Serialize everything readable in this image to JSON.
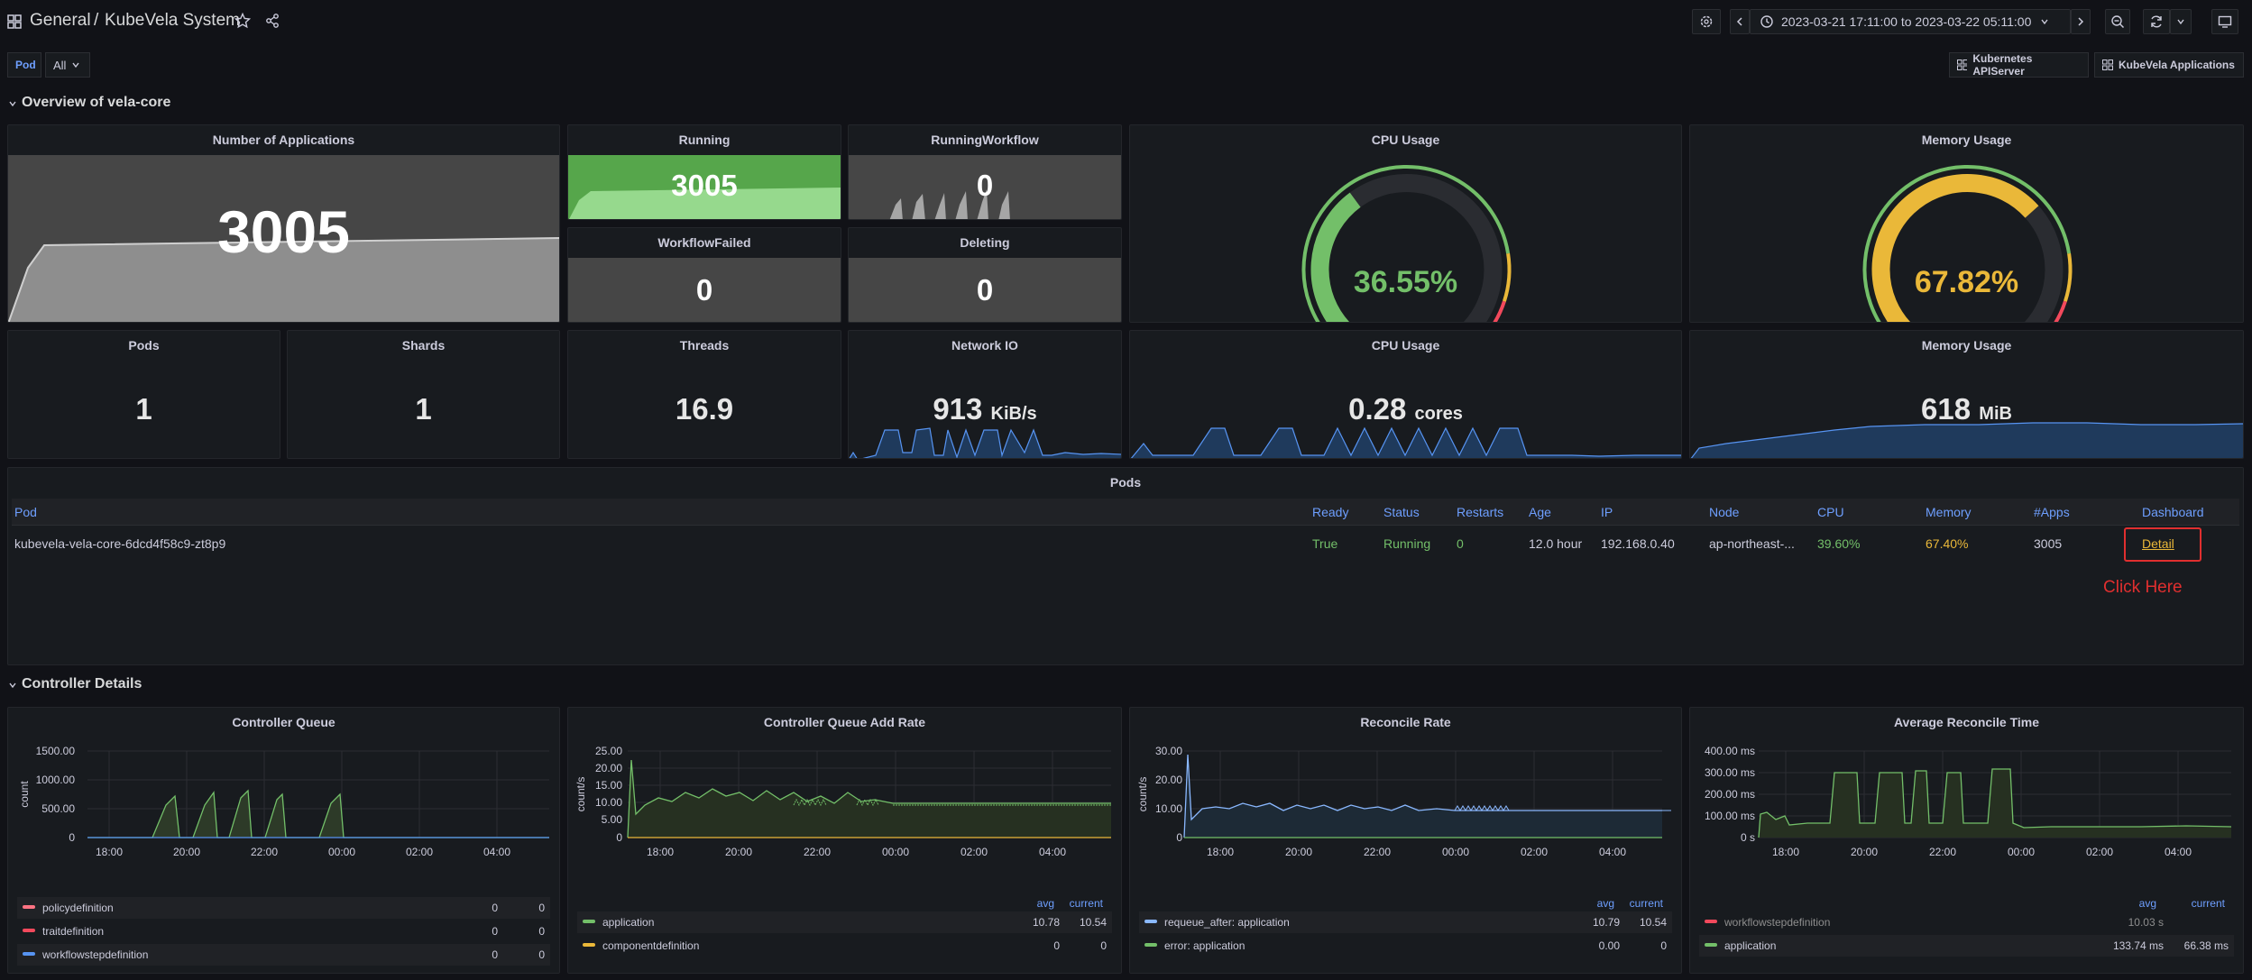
{
  "header": {
    "breadcrumb_root": "General",
    "breadcrumb_sep": "/",
    "dashboard_title": "KubeVela System",
    "time_range": "2023-03-21 17:11:00 to 2023-03-22 05:11:00",
    "icons": [
      "apps-icon",
      "star-icon",
      "share-icon",
      "gear-icon",
      "chevron-left-icon",
      "clock-icon",
      "chevron-down-icon",
      "chevron-right-icon",
      "zoom-out-icon",
      "refresh-icon",
      "chevron-down-icon",
      "tv-icon"
    ]
  },
  "variables": {
    "pod_label": "Pod",
    "pod_value": "All"
  },
  "links": {
    "k8s_api": "Kubernetes APIServer",
    "kubevela_apps": "KubeVela Applications"
  },
  "rows": {
    "overview": "Overview of vela-core",
    "controller": "Controller Details"
  },
  "stats": {
    "num_apps": {
      "title": "Number of Applications",
      "value": "3005"
    },
    "running": {
      "title": "Running",
      "value": "3005"
    },
    "running_workflow": {
      "title": "RunningWorkflow",
      "value": "0"
    },
    "workflow_failed": {
      "title": "WorkflowFailed",
      "value": "0"
    },
    "deleting": {
      "title": "Deleting",
      "value": "0"
    },
    "cpu_gauge": {
      "title": "CPU Usage",
      "value": "36.55%",
      "fraction": 0.3655,
      "color": "#73bf69"
    },
    "mem_gauge": {
      "title": "Memory Usage",
      "value": "67.82%",
      "fraction": 0.6782,
      "color": "#eab839"
    },
    "pods": {
      "title": "Pods",
      "value": "1"
    },
    "shards": {
      "title": "Shards",
      "value": "1"
    },
    "threads": {
      "title": "Threads",
      "value": "16.9"
    },
    "network_io": {
      "title": "Network IO",
      "value": "913",
      "unit": "KiB/s"
    },
    "cpu_cores": {
      "title": "CPU Usage",
      "value": "0.28",
      "unit": "cores"
    },
    "mem_mib": {
      "title": "Memory Usage",
      "value": "618",
      "unit": "MiB"
    }
  },
  "pods_table": {
    "title": "Pods",
    "columns": [
      "Pod",
      "Ready",
      "Status",
      "Restarts",
      "Age",
      "IP",
      "Node",
      "CPU",
      "Memory",
      "#Apps",
      "Dashboard"
    ],
    "row": {
      "pod": "kubevela-vela-core-6dcd4f58c9-zt8p9",
      "ready": "True",
      "status": "Running",
      "restarts": "0",
      "age": "12.0 hour",
      "ip": "192.168.0.40",
      "node": "ap-northeast-...",
      "cpu": "39.60%",
      "memory": "67.40%",
      "apps": "3005",
      "dashboard": "Detail"
    },
    "annotation": "Click Here"
  },
  "colors": {
    "green": "#73bf69",
    "yellow": "#eab839",
    "red": "#f2495c",
    "blue": "#6e9fff",
    "cyan": "#8ab8ff"
  },
  "charts": {
    "queue": {
      "title": "Controller Queue",
      "ylabel": "count",
      "yticks": [
        "1500.00",
        "1000.00",
        "500.00",
        "0"
      ],
      "xticks": [
        "18:00",
        "20:00",
        "22:00",
        "00:00",
        "02:00",
        "04:00"
      ],
      "legend": [
        {
          "name": "policydefinition",
          "v1": "0",
          "v2": "0",
          "color": "#ff7383"
        },
        {
          "name": "traitdefinition",
          "v1": "0",
          "v2": "0",
          "color": "#f2495c"
        },
        {
          "name": "workflowstepdefinition",
          "v1": "0",
          "v2": "0",
          "color": "#5794f2"
        }
      ]
    },
    "add_rate": {
      "title": "Controller Queue Add Rate",
      "ylabel": "count/s",
      "yticks": [
        "25.00",
        "20.00",
        "15.00",
        "10.00",
        "5.00",
        "0"
      ],
      "xticks": [
        "18:00",
        "20:00",
        "22:00",
        "00:00",
        "02:00",
        "04:00"
      ],
      "legend_headers": [
        "avg",
        "current"
      ],
      "legend": [
        {
          "name": "application",
          "v1": "10.78",
          "v2": "10.54",
          "color": "#73bf69"
        },
        {
          "name": "componentdefinition",
          "v1": "0",
          "v2": "0",
          "color": "#eab839"
        }
      ]
    },
    "reconcile": {
      "title": "Reconcile Rate",
      "ylabel": "count/s",
      "yticks": [
        "30.00",
        "20.00",
        "10.00",
        "0"
      ],
      "xticks": [
        "18:00",
        "20:00",
        "22:00",
        "00:00",
        "02:00",
        "04:00"
      ],
      "legend_headers": [
        "avg",
        "current"
      ],
      "legend": [
        {
          "name": "requeue_after: application",
          "v1": "10.79",
          "v2": "10.54",
          "color": "#8ab8ff"
        },
        {
          "name": "error: application",
          "v1": "0.00",
          "v2": "0",
          "color": "#73bf69"
        }
      ]
    },
    "avg_time": {
      "title": "Average Reconcile Time",
      "yticks": [
        "400.00 ms",
        "300.00 ms",
        "200.00 ms",
        "100.00 ms",
        "0 s"
      ],
      "xticks": [
        "18:00",
        "20:00",
        "22:00",
        "00:00",
        "02:00",
        "04:00"
      ],
      "legend_headers": [
        "avg",
        "current"
      ],
      "legend": [
        {
          "name": "workflowstepdefinition",
          "v1": "10.03 s",
          "v2": "",
          "color": "#f2495c"
        },
        {
          "name": "application",
          "v1": "133.74 ms",
          "v2": "66.38 ms",
          "color": "#73bf69"
        }
      ]
    }
  }
}
